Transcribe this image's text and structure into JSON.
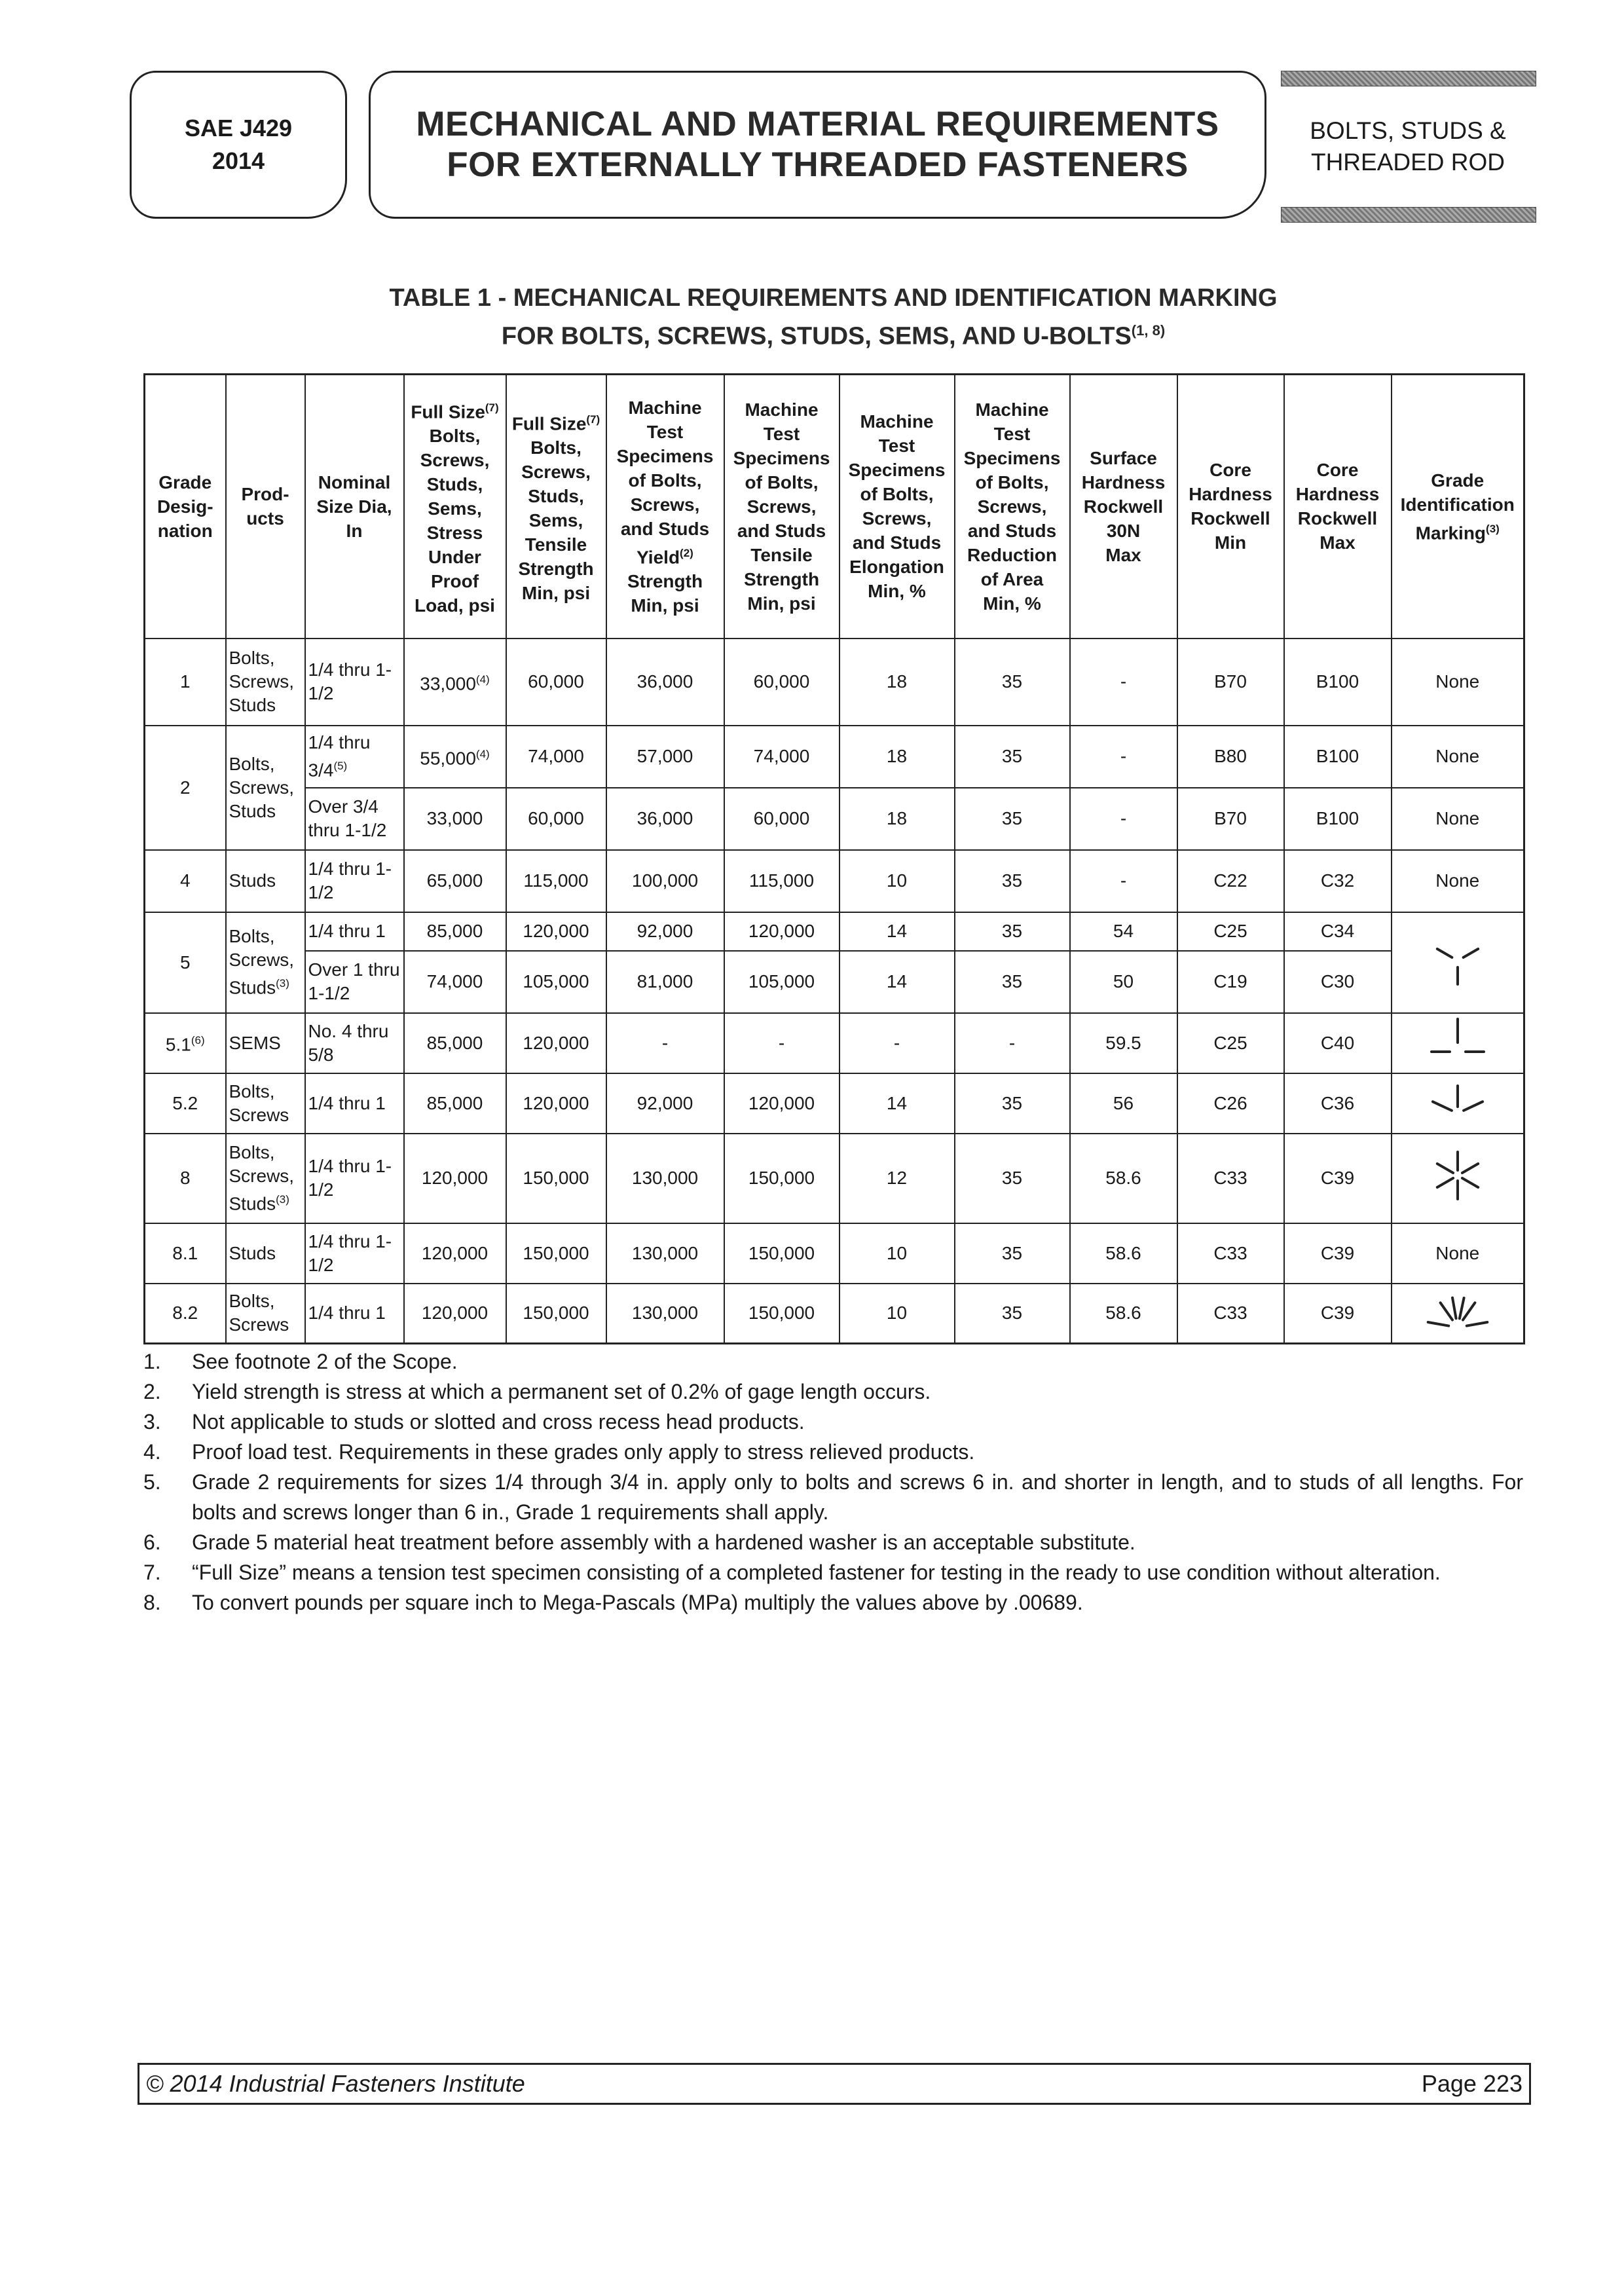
{
  "header": {
    "code": [
      "SAE J429",
      "2014"
    ],
    "title": [
      "MECHANICAL AND MATERIAL REQUIREMENTS",
      "FOR EXTERNALLY THREADED FASTENERS"
    ],
    "section": [
      "BOLTS, STUDS &",
      "THREADED ROD"
    ]
  },
  "table": {
    "title": [
      "TABLE 1 - MECHANICAL REQUIREMENTS AND IDENTIFICATION MARKING",
      "FOR BOLTS, SCREWS, STUDS, SEMS, AND U-BOLTS"
    ],
    "title_sup": "(1, 8)",
    "headers": [
      [
        "Grade",
        "Desig-",
        "nation"
      ],
      [
        "Prod-",
        "ucts"
      ],
      [
        "Nominal",
        "Size Dia,",
        "In"
      ],
      [
        [
          "Full Size",
          "(7)"
        ],
        "Bolts,",
        "Screws,",
        "Studs,",
        "Sems,",
        "Stress",
        "Under",
        "Proof",
        "Load, psi"
      ],
      [
        [
          "Full Size",
          "(7)"
        ],
        "Bolts,",
        "Screws,",
        "Studs,",
        "Sems,",
        "Tensile",
        "Strength",
        "Min, psi"
      ],
      [
        "Machine",
        "Test",
        "Specimens",
        "of Bolts,",
        "Screws,",
        "and Studs",
        [
          "Yield",
          "(2)"
        ],
        "Strength",
        "Min, psi"
      ],
      [
        "Machine",
        "Test",
        "Specimens",
        "of Bolts,",
        "Screws,",
        "and Studs",
        "Tensile",
        "Strength",
        "Min, psi"
      ],
      [
        "Machine",
        "Test",
        "Specimens",
        "of Bolts,",
        "Screws,",
        "and Studs",
        "Elongation",
        "Min, %"
      ],
      [
        "Machine",
        "Test",
        "Specimens",
        "of Bolts,",
        "Screws,",
        "and Studs",
        "Reduction",
        "of Area",
        "Min, %"
      ],
      [
        "Surface",
        "Hardness",
        "Rockwell",
        "30N",
        "Max"
      ],
      [
        "Core",
        "Hardness",
        "Rockwell",
        "Min"
      ],
      [
        "Core",
        "Hardness",
        "Rockwell",
        "Max"
      ],
      [
        "Grade",
        "Identification",
        [
          "Marking",
          "(3)"
        ]
      ]
    ],
    "rows": [
      [
        "1",
        "Bolts, Screws, Studs",
        "1/4 thru 1-1/2",
        {
          "text": "33,000",
          "sup": "(4)"
        },
        "60,000",
        "36,000",
        "60,000",
        "18",
        "35",
        "-",
        "B70",
        "B100",
        "None"
      ],
      [
        "2",
        "Bolts, Screws, Studs",
        {
          "text": "1/4 thru 3/4",
          "sup": "(5)"
        },
        {
          "text": "55,000",
          "sup": "(4)"
        },
        "74,000",
        "57,000",
        "74,000",
        "18",
        "35",
        "-",
        "B80",
        "B100",
        "None"
      ],
      [
        "Over 3/4 thru 1-1/2",
        "33,000",
        "60,000",
        "36,000",
        "60,000",
        "18",
        "35",
        "-",
        "B70",
        "B100",
        "None"
      ],
      [
        "4",
        "Studs",
        "1/4 thru 1-1/2",
        "65,000",
        "115,000",
        "100,000",
        "115,000",
        "10",
        "35",
        "-",
        "C22",
        "C32",
        "None"
      ],
      [
        "5",
        {
          "text": "Bolts, Screws, Studs",
          "sup": "(3)"
        },
        "1/4 thru 1",
        "85,000",
        "120,000",
        "92,000",
        "120,000",
        "14",
        "35",
        "54",
        "C25",
        "C34"
      ],
      [
        "Over 1 thru 1-1/2",
        "74,000",
        "105,000",
        "81,000",
        "105,000",
        "14",
        "35",
        "50",
        "C19",
        "C30"
      ],
      [
        {
          "text": "5.1",
          "sup": "(6)"
        },
        "SEMS",
        "No. 4 thru 5/8",
        "85,000",
        "120,000",
        "-",
        "-",
        "-",
        "-",
        "59.5",
        "C25",
        "C40"
      ],
      [
        "5.2",
        "Bolts, Screws",
        "1/4 thru 1",
        "85,000",
        "120,000",
        "92,000",
        "120,000",
        "14",
        "35",
        "56",
        "C26",
        "C36"
      ],
      [
        "8",
        {
          "text": "Bolts, Screws, Studs",
          "sup": "(3)"
        },
        "1/4 thru 1-1/2",
        "120,000",
        "150,000",
        "130,000",
        "150,000",
        "12",
        "35",
        "58.6",
        "C33",
        "C39"
      ],
      [
        "8.1",
        "Studs",
        "1/4 thru 1-1/2",
        "120,000",
        "150,000",
        "130,000",
        "150,000",
        "10",
        "35",
        "58.6",
        "C33",
        "C39",
        "None"
      ],
      [
        "8.2",
        "Bolts, Screws",
        "1/4 thru 1",
        "120,000",
        "150,000",
        "130,000",
        "150,000",
        "10",
        "35",
        "58.6",
        "C33",
        "C39"
      ]
    ]
  },
  "footnotes": [
    {
      "number": "1.",
      "text": "See footnote 2 of the Scope."
    },
    {
      "number": "2.",
      "text": "Yield strength is stress at which a permanent set of 0.2% of gage length occurs."
    },
    {
      "number": "3.",
      "text": "Not applicable to studs or slotted and cross recess head products."
    },
    {
      "number": "4.",
      "text": "Proof load test. Requirements in these grades only apply to stress relieved products."
    },
    {
      "number": "5.",
      "text": "Grade 2 requirements for sizes 1/4 through 3/4 in. apply only to bolts and screws 6 in. and shorter in length, and to studs of all lengths. For bolts and screws longer than 6 in., Grade 1 requirements shall apply."
    },
    {
      "number": "6.",
      "text": "Grade 5 material heat treatment before assembly with a hardened washer is an acceptable substitute."
    },
    {
      "number": "7.",
      "text": "“Full Size” means a tension test specimen consisting of a completed fastener for testing in the ready to use condition without alteration."
    },
    {
      "number": "8.",
      "text": "To convert pounds per square inch to Mega-Pascals (MPa) multiply the values above by .00689."
    }
  ],
  "footer": {
    "copyright": "© 2014 Industrial Fasteners Institute",
    "page": "Page 223"
  }
}
